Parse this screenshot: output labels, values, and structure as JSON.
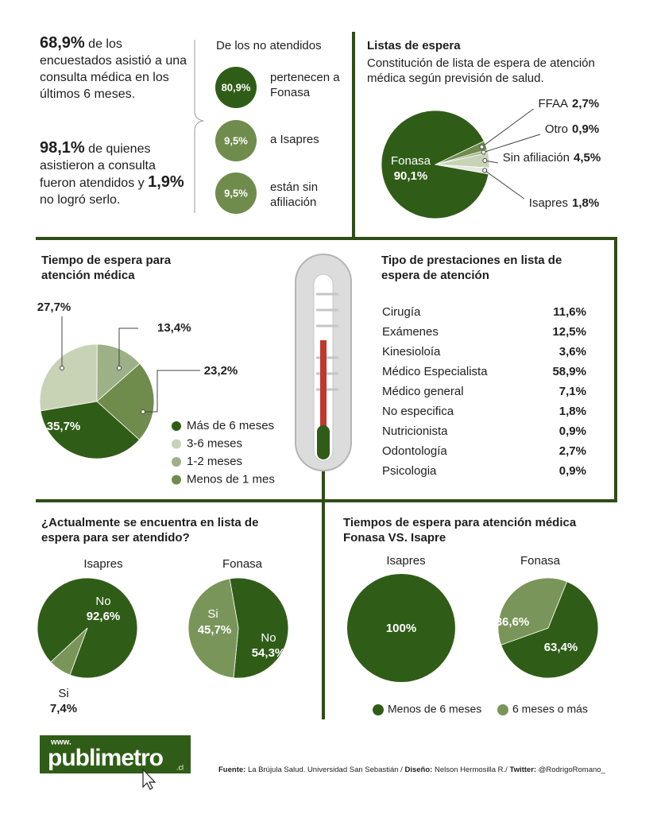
{
  "intro": {
    "stat1_value": "68,9%",
    "stat1_text": "de los encuestados asistió a una consulta médica en los últimos 6 meses.",
    "stat2_value": "98,1%",
    "stat2_text": "de quienes asistieron a consulta fueron atendidos y",
    "stat3_value": "1,9%",
    "stat3_text": "no logró serlo."
  },
  "no_atendidos": {
    "title": "De los no atendidos",
    "items": [
      {
        "value": "80,9%",
        "text": "pertenecen a Fonasa"
      },
      {
        "value": "9,5%",
        "text": "a Isapres"
      },
      {
        "value": "9,5%",
        "text": "están sin afiliación"
      }
    ]
  },
  "prestaciones": {
    "title": "Tipo de prestaciones en lista de espera de atención",
    "rows": [
      [
        "Cirugía",
        "11,6%"
      ],
      [
        "Exámenes",
        "12,5%"
      ],
      [
        "Kinesioloía",
        "3,6%"
      ],
      [
        "Médico Especialista",
        "58,9%"
      ],
      [
        "Médico general",
        "7,1%"
      ],
      [
        "No especifica",
        "1,8%"
      ],
      [
        "Nutricionista",
        "0,9%"
      ],
      [
        "Odontología",
        "2,7%"
      ],
      [
        "Psicologia",
        "0,9%"
      ]
    ]
  },
  "chart_data": [
    {
      "type": "pie",
      "title": "Listas de espera",
      "subtitle": "Constitución de lista de espera de atención médica según previsión de salud.",
      "categories": [
        "Fonasa",
        "FFAA",
        "Otro",
        "Sin afiliación",
        "Isapres"
      ],
      "values": [
        90.1,
        2.7,
        0.9,
        4.5,
        1.8
      ],
      "value_labels": [
        "90,1%",
        "2,7%",
        "0,9%",
        "4,5%",
        "1,8%"
      ],
      "colors": [
        "#2f5d17",
        "#6f8c4c",
        "#9db087",
        "#c8d3b6",
        "#e4e9dc"
      ]
    },
    {
      "type": "pie",
      "title": "Tiempo de espera para atención médica",
      "categories": [
        "Más de 6 meses",
        "3-6 meses",
        "1-2 meses",
        "Menos de 1 mes"
      ],
      "values": [
        35.7,
        27.7,
        13.4,
        23.2
      ],
      "value_labels": [
        "35,7%",
        "27,7%",
        "13,4%",
        "23,2%"
      ],
      "colors": [
        "#2f5d17",
        "#c8d3b6",
        "#9db087",
        "#6f8c4c"
      ],
      "legend": true
    },
    {
      "type": "pie",
      "title": "¿Actualmente se encuentra en lista de espera para ser atendido?",
      "categories": [
        "No",
        "Si"
      ],
      "colors": [
        "#2f5d17",
        "#7a955a"
      ],
      "series": [
        {
          "name": "Isapres",
          "values": [
            92.6,
            7.4
          ],
          "value_labels": [
            "92,6%",
            "7,4%"
          ]
        },
        {
          "name": "Fonasa",
          "values": [
            54.3,
            45.7
          ],
          "value_labels": [
            "54,3%",
            "45,7%"
          ]
        }
      ]
    },
    {
      "type": "pie",
      "title": "Tiempos de espera para atención médica Fonasa VS. Isapre",
      "categories": [
        "Menos de 6 meses",
        "6 meses o más"
      ],
      "colors": [
        "#2f5d17",
        "#7a955a"
      ],
      "legend": true,
      "series": [
        {
          "name": "Isapres",
          "values": [
            100,
            0
          ],
          "value_labels": [
            "100%",
            null
          ]
        },
        {
          "name": "Fonasa",
          "values": [
            63.4,
            36.6
          ],
          "value_labels": [
            "63,4%",
            "36,6%"
          ]
        }
      ]
    }
  ],
  "logo": {
    "www": "www.",
    "name": "publimetro",
    "domain": ".cl"
  },
  "footer": {
    "fuente_label": "Fuente:",
    "fuente": "La Brújula Salud. Universidad San Sebastián /",
    "diseno_label": "Diseño:",
    "diseno": "Nelson Hermosilla R./",
    "twitter_label": "Twitter:",
    "twitter": "@RodrigoRomano_"
  }
}
